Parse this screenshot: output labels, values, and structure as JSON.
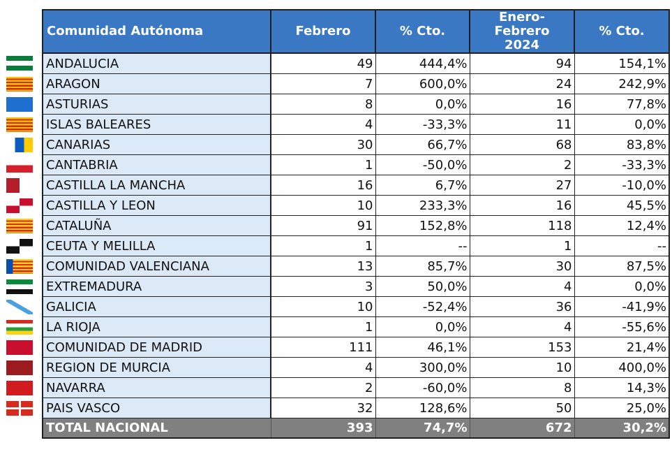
{
  "header": {
    "region": "Comunidad Autónoma",
    "col_feb": "Febrero",
    "col_feb_pct": "% Cto.",
    "col_ytd_line1": "Enero-Febrero",
    "col_ytd_line2": "2024",
    "col_ytd_pct": "% Cto."
  },
  "rows": [
    {
      "region": "ANDALUCIA",
      "feb": "49",
      "feb_pct": "444,4%",
      "ytd": "94",
      "ytd_pct": "154,1%",
      "flag": "andalucia-flag-icon"
    },
    {
      "region": "ARAGON",
      "feb": "7",
      "feb_pct": "600,0%",
      "ytd": "24",
      "ytd_pct": "242,9%",
      "flag": "aragon-flag-icon"
    },
    {
      "region": "ASTURIAS",
      "feb": "8",
      "feb_pct": "0,0%",
      "ytd": "16",
      "ytd_pct": "77,8%",
      "flag": "asturias-flag-icon"
    },
    {
      "region": "ISLAS BALEARES",
      "feb": "4",
      "feb_pct": "-33,3%",
      "ytd": "11",
      "ytd_pct": "0,0%",
      "flag": "baleares-flag-icon"
    },
    {
      "region": "CANARIAS",
      "feb": "30",
      "feb_pct": "66,7%",
      "ytd": "68",
      "ytd_pct": "83,8%",
      "flag": "canarias-flag-icon"
    },
    {
      "region": "CANTABRIA",
      "feb": "1",
      "feb_pct": "-50,0%",
      "ytd": "2",
      "ytd_pct": "-33,3%",
      "flag": "cantabria-flag-icon"
    },
    {
      "region": "CASTILLA  LA MANCHA",
      "feb": "16",
      "feb_pct": "6,7%",
      "ytd": "27",
      "ytd_pct": "-10,0%",
      "flag": "castilla-la-mancha-flag-icon"
    },
    {
      "region": "CASTILLA Y LEON",
      "feb": "10",
      "feb_pct": "233,3%",
      "ytd": "16",
      "ytd_pct": "45,5%",
      "flag": "castilla-y-leon-flag-icon"
    },
    {
      "region": "CATALUÑA",
      "feb": "91",
      "feb_pct": "152,8%",
      "ytd": "118",
      "ytd_pct": "12,4%",
      "flag": "cataluna-flag-icon"
    },
    {
      "region": "CEUTA Y MELILLA",
      "feb": "1",
      "feb_pct": "--",
      "ytd": "1",
      "ytd_pct": "--",
      "flag": "ceuta-melilla-flag-icon"
    },
    {
      "region": "COMUNIDAD VALENCIANA",
      "feb": "13",
      "feb_pct": "85,7%",
      "ytd": "30",
      "ytd_pct": "87,5%",
      "flag": "valencia-flag-icon"
    },
    {
      "region": "EXTREMADURA",
      "feb": "3",
      "feb_pct": "50,0%",
      "ytd": "4",
      "ytd_pct": "0,0%",
      "flag": "extremadura-flag-icon"
    },
    {
      "region": "GALICIA",
      "feb": "10",
      "feb_pct": "-52,4%",
      "ytd": "36",
      "ytd_pct": "-41,9%",
      "flag": "galicia-flag-icon"
    },
    {
      "region": "LA RIOJA",
      "feb": "1",
      "feb_pct": "0,0%",
      "ytd": "4",
      "ytd_pct": "-55,6%",
      "flag": "la-rioja-flag-icon"
    },
    {
      "region": "COMUNIDAD DE MADRID",
      "feb": "111",
      "feb_pct": "46,1%",
      "ytd": "153",
      "ytd_pct": "21,4%",
      "flag": "madrid-flag-icon"
    },
    {
      "region": "REGION DE MURCIA",
      "feb": "4",
      "feb_pct": "300,0%",
      "ytd": "10",
      "ytd_pct": "400,0%",
      "flag": "murcia-flag-icon"
    },
    {
      "region": "NAVARRA",
      "feb": "2",
      "feb_pct": "-60,0%",
      "ytd": "8",
      "ytd_pct": "14,3%",
      "flag": "navarra-flag-icon"
    },
    {
      "region": "PAIS VASCO",
      "feb": "32",
      "feb_pct": "128,6%",
      "ytd": "50",
      "ytd_pct": "25,0%",
      "flag": "pais-vasco-flag-icon"
    }
  ],
  "total": {
    "region": "TOTAL NACIONAL",
    "feb": "393",
    "feb_pct": "74,7%",
    "ytd": "672",
    "ytd_pct": "30,2%"
  },
  "colors": {
    "header_bg": "#3b78c3",
    "name_col_bg": "#dce9f6",
    "total_bg": "#808080"
  }
}
